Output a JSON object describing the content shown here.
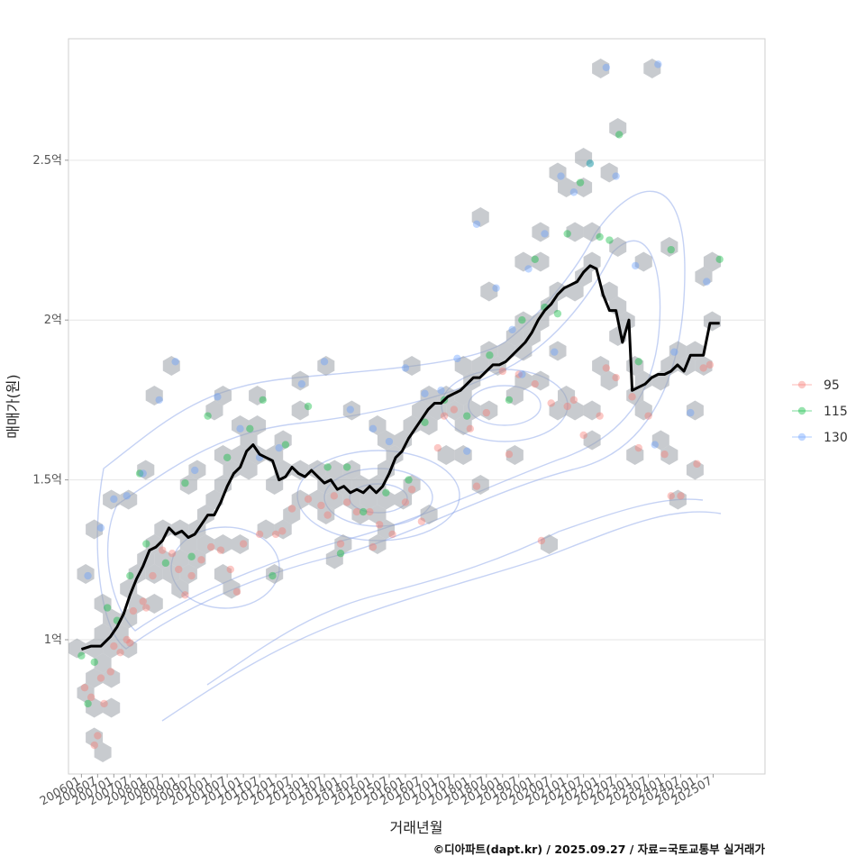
{
  "chart_data": {
    "type": "scatter",
    "title": "",
    "xlabel": "거래년월",
    "ylabel": "매매가(원)",
    "caption": "©디아파트(dapt.kr) / 2025.09.27 / 자료=국토교통부 실거래가",
    "ylim": [
      0.58,
      2.88
    ],
    "xlim": [
      2005.6,
      2027.1
    ],
    "y_ticks": [
      {
        "value": 1.0,
        "label": "1억"
      },
      {
        "value": 1.5,
        "label": "1.5억"
      },
      {
        "value": 2.0,
        "label": "2억"
      },
      {
        "value": 2.5,
        "label": "2.5억"
      }
    ],
    "x_ticks": [
      "200601",
      "200607",
      "200701",
      "200707",
      "200801",
      "200807",
      "200901",
      "200907",
      "201001",
      "201007",
      "201101",
      "201107",
      "201201",
      "201207",
      "201301",
      "201307",
      "201401",
      "201407",
      "201501",
      "201507",
      "201601",
      "201607",
      "201701",
      "201707",
      "201801",
      "201807",
      "201901",
      "201907",
      "202001",
      "202007",
      "202101",
      "202107",
      "202201",
      "202207",
      "202301",
      "202307",
      "202401",
      "202407",
      "202501",
      "202507"
    ],
    "legend": {
      "position": "right",
      "entries": [
        {
          "label": "95",
          "color": "#F8766D"
        },
        {
          "label": "115",
          "color": "#00BA38"
        },
        {
          "label": "130",
          "color": "#619CFF"
        }
      ]
    },
    "trend_line": {
      "name": "moving average",
      "x": [
        2006.0,
        2006.3,
        2006.6,
        2006.9,
        2007.1,
        2007.3,
        2007.5,
        2007.7,
        2007.9,
        2008.1,
        2008.3,
        2008.5,
        2008.7,
        2008.9,
        2009.1,
        2009.3,
        2009.5,
        2009.7,
        2009.9,
        2010.1,
        2010.3,
        2010.5,
        2010.7,
        2010.9,
        2011.1,
        2011.3,
        2011.5,
        2011.7,
        2011.9,
        2012.1,
        2012.3,
        2012.5,
        2012.7,
        2012.9,
        2013.1,
        2013.3,
        2013.5,
        2013.7,
        2013.9,
        2014.1,
        2014.3,
        2014.5,
        2014.7,
        2014.9,
        2015.1,
        2015.3,
        2015.5,
        2015.7,
        2015.9,
        2016.1,
        2016.3,
        2016.5,
        2016.7,
        2016.9,
        2017.1,
        2017.3,
        2017.5,
        2017.7,
        2017.9,
        2018.1,
        2018.3,
        2018.5,
        2018.7,
        2018.9,
        2019.1,
        2019.3,
        2019.5,
        2019.7,
        2019.9,
        2020.1,
        2020.3,
        2020.5,
        2020.7,
        2020.9,
        2021.1,
        2021.3,
        2021.5,
        2021.7,
        2021.9,
        2022.1,
        2022.3,
        2022.5,
        2022.7,
        2022.9,
        2023.0,
        2023.2,
        2023.4,
        2023.6,
        2023.8,
        2024.0,
        2024.2,
        2024.4,
        2024.6,
        2024.8,
        2025.0,
        2025.2,
        2025.4,
        2025.6,
        2025.7
      ],
      "y": [
        0.97,
        0.98,
        0.98,
        1.01,
        1.04,
        1.08,
        1.14,
        1.19,
        1.23,
        1.28,
        1.29,
        1.31,
        1.35,
        1.33,
        1.34,
        1.32,
        1.33,
        1.36,
        1.39,
        1.39,
        1.43,
        1.48,
        1.52,
        1.54,
        1.59,
        1.61,
        1.58,
        1.57,
        1.56,
        1.5,
        1.51,
        1.54,
        1.52,
        1.51,
        1.53,
        1.51,
        1.49,
        1.5,
        1.47,
        1.48,
        1.46,
        1.47,
        1.46,
        1.48,
        1.46,
        1.48,
        1.52,
        1.57,
        1.59,
        1.63,
        1.66,
        1.69,
        1.72,
        1.74,
        1.74,
        1.76,
        1.77,
        1.78,
        1.8,
        1.82,
        1.82,
        1.84,
        1.86,
        1.86,
        1.87,
        1.89,
        1.91,
        1.93,
        1.96,
        2.0,
        2.03,
        2.05,
        2.08,
        2.1,
        2.11,
        2.12,
        2.15,
        2.17,
        2.16,
        2.08,
        2.03,
        2.03,
        1.93,
        2.0,
        1.78,
        1.79,
        1.8,
        1.82,
        1.83,
        1.83,
        1.84,
        1.86,
        1.84,
        1.89,
        1.89,
        1.89,
        1.99,
        1.99,
        1.99
      ],
      "color": "#000000"
    },
    "hex_bins_note": "grey hexagon density bins and blue 2D density contours behind points",
    "series": [
      {
        "name": "95",
        "x": [
          2006.1,
          2006.3,
          2006.5,
          2006.6,
          2006.7,
          2007.0,
          2007.2,
          2007.4,
          2007.6,
          2007.9,
          2008.2,
          2008.5,
          2008.8,
          2009.0,
          2009.4,
          2009.7,
          2010.0,
          2010.3,
          2010.6,
          2011.0,
          2011.5,
          2012.0,
          2012.5,
          2013.0,
          2013.4,
          2013.8,
          2014.2,
          2014.5,
          2014.9,
          2015.2,
          2015.6,
          2016.0,
          2016.5,
          2017.0,
          2017.5,
          2018.0,
          2018.5,
          2019.0,
          2019.5,
          2020.0,
          2020.5,
          2021.0,
          2021.5,
          2022.0,
          2022.5,
          2023.0,
          2023.5,
          2024.0,
          2024.5,
          2025.0,
          2025.4,
          2006.4,
          2006.9,
          2007.5,
          2008.0,
          2009.2,
          2010.8,
          2012.2,
          2013.6,
          2014.0,
          2015.0,
          2016.2,
          2017.2,
          2018.2,
          2019.2,
          2020.2,
          2021.2,
          2022.2,
          2023.2,
          2024.2,
          2025.2
        ],
        "y": [
          0.85,
          0.82,
          0.7,
          0.88,
          0.8,
          0.98,
          0.96,
          1.0,
          1.09,
          1.12,
          1.2,
          1.28,
          1.27,
          1.22,
          1.2,
          1.25,
          1.29,
          1.28,
          1.22,
          1.3,
          1.33,
          1.33,
          1.41,
          1.44,
          1.42,
          1.45,
          1.43,
          1.4,
          1.4,
          1.36,
          1.33,
          1.43,
          1.37,
          1.6,
          1.72,
          1.66,
          1.71,
          1.84,
          1.83,
          1.8,
          1.74,
          1.73,
          1.64,
          1.7,
          1.82,
          1.76,
          1.7,
          1.58,
          1.45,
          1.55,
          1.86,
          0.67,
          0.9,
          0.99,
          1.1,
          1.14,
          1.15,
          1.34,
          1.39,
          1.3,
          1.29,
          1.47,
          1.7,
          1.48,
          1.58,
          1.31,
          1.75,
          1.85,
          1.6,
          1.45,
          1.85
        ]
      },
      {
        "name": "115",
        "x": [
          2006.0,
          2006.4,
          2006.8,
          2007.1,
          2007.5,
          2008.0,
          2008.6,
          2009.2,
          2009.9,
          2010.5,
          2011.2,
          2011.6,
          2012.3,
          2013.0,
          2013.6,
          2014.2,
          2014.7,
          2015.4,
          2016.1,
          2016.6,
          2017.2,
          2017.9,
          2018.6,
          2019.2,
          2019.6,
          2020.0,
          2020.3,
          2020.7,
          2021.0,
          2021.4,
          2021.7,
          2022.0,
          2022.3,
          2022.6,
          2023.2,
          2024.2,
          2025.7,
          2006.2,
          2007.8,
          2009.4,
          2011.9,
          2014.0
        ],
        "y": [
          0.95,
          0.93,
          1.1,
          1.06,
          1.2,
          1.3,
          1.24,
          1.49,
          1.7,
          1.57,
          1.66,
          1.75,
          1.61,
          1.73,
          1.54,
          1.54,
          1.4,
          1.46,
          1.5,
          1.68,
          1.75,
          1.7,
          1.89,
          1.75,
          2.0,
          2.19,
          2.04,
          2.02,
          2.27,
          2.43,
          2.49,
          2.26,
          2.25,
          2.58,
          1.87,
          2.22,
          2.19,
          0.8,
          1.52,
          1.26,
          1.2,
          1.27
        ]
      },
      {
        "name": "130",
        "x": [
          2006.2,
          2006.6,
          2007.0,
          2007.4,
          2007.9,
          2008.4,
          2008.9,
          2009.5,
          2010.2,
          2010.9,
          2011.5,
          2012.1,
          2012.8,
          2013.5,
          2014.3,
          2015.0,
          2015.5,
          2016.0,
          2016.6,
          2017.1,
          2017.6,
          2018.2,
          2018.8,
          2019.3,
          2019.8,
          2020.3,
          2020.8,
          2021.2,
          2021.7,
          2022.2,
          2022.5,
          2023.1,
          2023.8,
          2024.3,
          2024.8,
          2025.3,
          2017.9,
          2019.6,
          2020.6,
          2023.7
        ],
        "y": [
          1.2,
          1.35,
          1.44,
          1.45,
          1.52,
          1.75,
          1.87,
          1.53,
          1.76,
          1.66,
          1.57,
          1.6,
          1.8,
          1.87,
          1.72,
          1.66,
          1.62,
          1.85,
          1.77,
          1.78,
          1.88,
          2.3,
          2.1,
          1.97,
          2.16,
          2.27,
          2.45,
          2.4,
          2.49,
          2.79,
          2.45,
          2.17,
          2.8,
          1.9,
          1.71,
          2.12,
          1.59,
          1.83,
          1.9,
          1.61
        ]
      }
    ]
  }
}
